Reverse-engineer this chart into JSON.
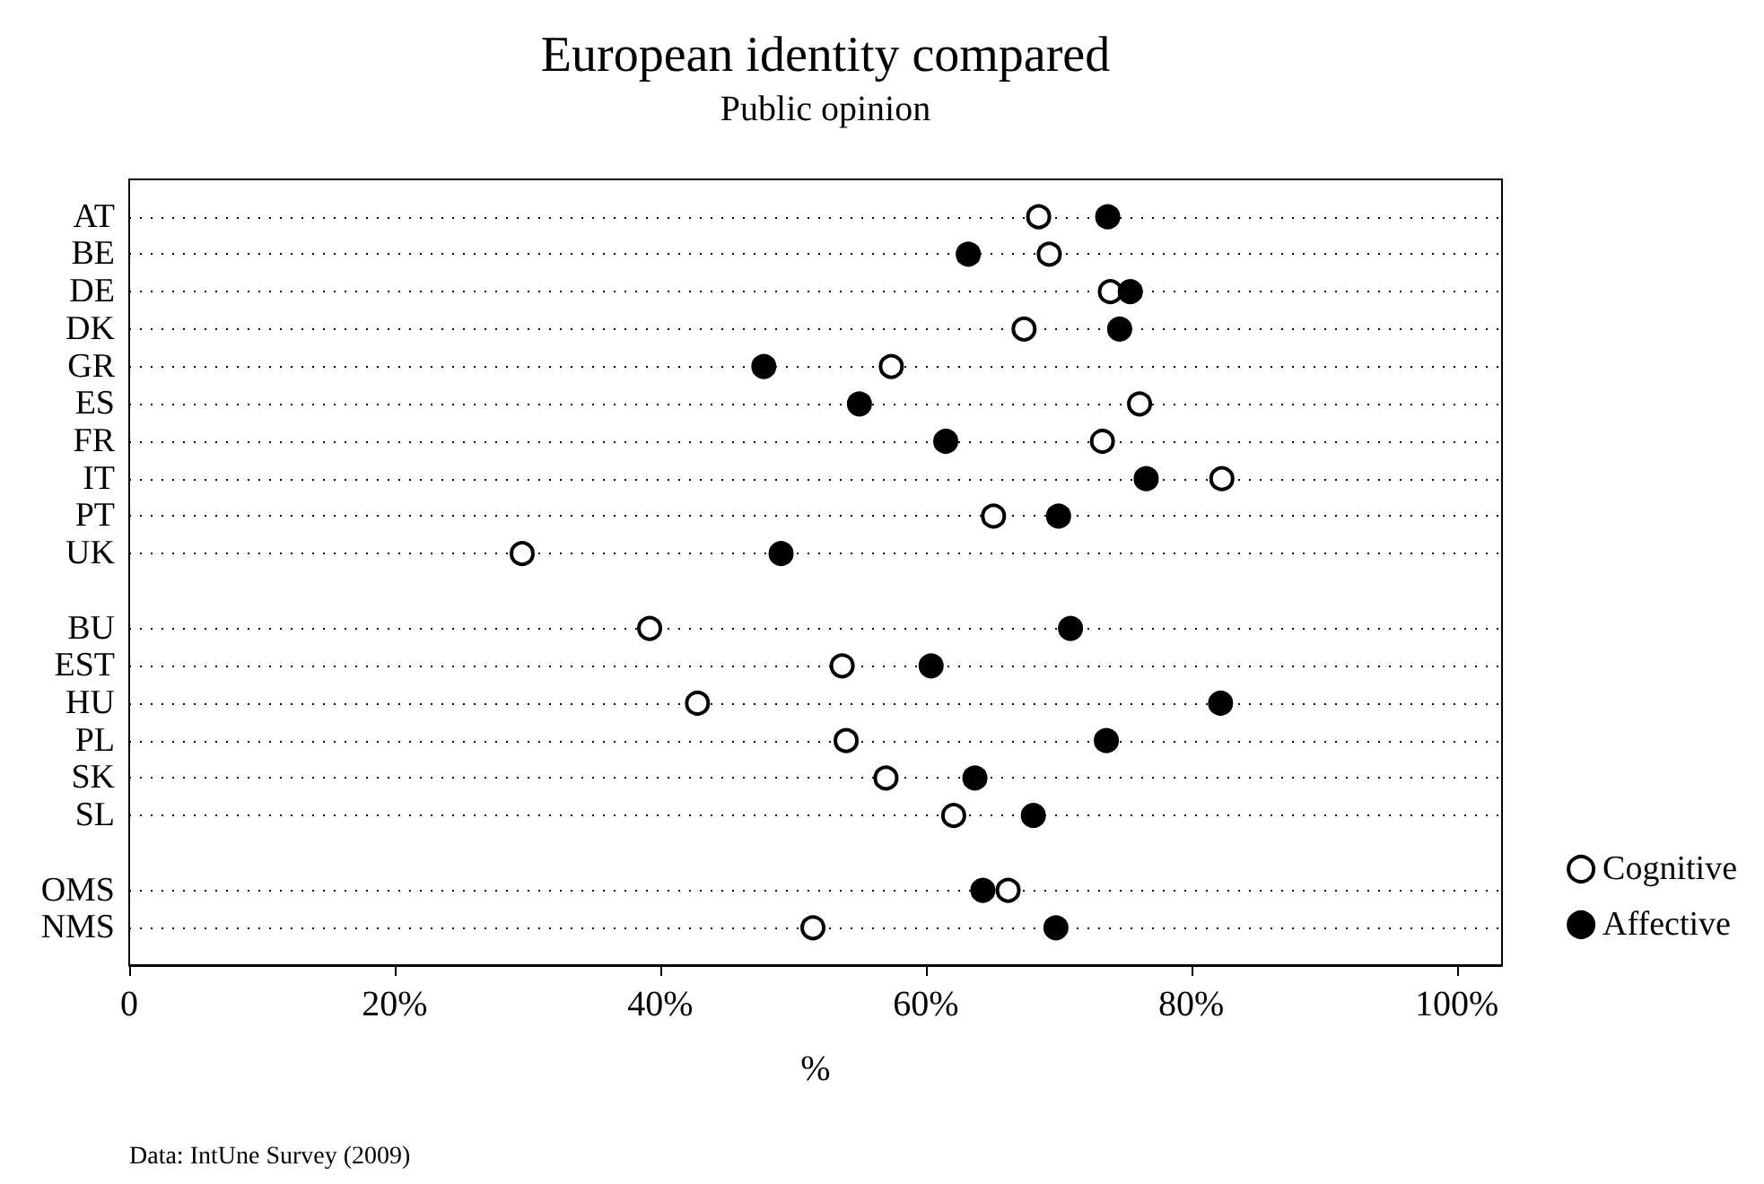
{
  "chart_data": {
    "type": "scatter",
    "title": "European identity compared",
    "subtitle": "Public opinion",
    "xlabel": "%",
    "annotations": [
      "Data: IntUne Survey (2009)"
    ],
    "categories": [
      null,
      "AT",
      "BE",
      "DE",
      "DK",
      "GR",
      "ES",
      "FR",
      "IT",
      "PT",
      "UK",
      null,
      "BU",
      "EST",
      "HU",
      "PL",
      "SK",
      "SL",
      null,
      "OMS",
      "NMS",
      null
    ],
    "series": [
      {
        "name": "Cognitive",
        "color": "#ffffff",
        "values": [
          null,
          68.5,
          69.3,
          73.9,
          67.4,
          57.4,
          76.1,
          73.3,
          82.3,
          65.1,
          29.6,
          null,
          39.2,
          53.7,
          42.8,
          54.0,
          57.0,
          62.1,
          null,
          66.2,
          51.5,
          null
        ]
      },
      {
        "name": "Affective",
        "color": "#000000",
        "values": [
          null,
          73.7,
          63.2,
          75.4,
          74.6,
          47.8,
          55.0,
          61.5,
          76.6,
          70.0,
          49.1,
          null,
          70.9,
          60.4,
          82.2,
          73.6,
          63.7,
          68.1,
          null,
          64.3,
          69.8,
          null
        ]
      }
    ],
    "orientation": "horizontal",
    "xlim": [
      0,
      103.4
    ],
    "xticks": [
      0,
      {
        "value": 20,
        "label": "20%"
      },
      {
        "value": 40,
        "label": "40%"
      },
      {
        "value": 60,
        "label": "60%"
      },
      {
        "value": 80,
        "label": "80%"
      },
      {
        "value": 100,
        "label": "100%"
      }
    ],
    "grid": "y",
    "legend": "right",
    "marker": "circle"
  }
}
